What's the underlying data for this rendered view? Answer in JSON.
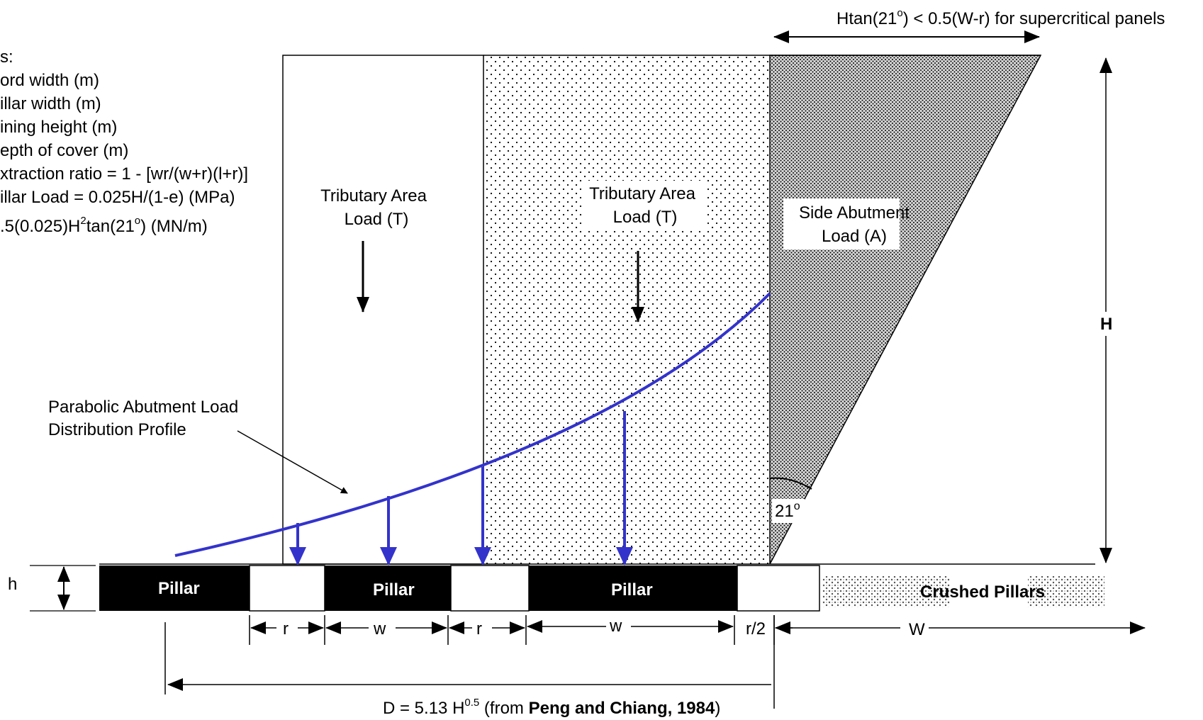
{
  "legend": {
    "heading": "s:",
    "lines": [
      "ord width (m)",
      "illar width (m)",
      "ining height (m)",
      "epth of cover (m)",
      "xtraction ratio = 1 - [wr/(w+r)(l+r)]",
      "illar Load = 0.025H/(1-e) (MPa)"
    ],
    "abutment_formula": {
      "a": ".5(0.025)H",
      "sup": "2",
      "b": "tan(21",
      "deg": "o",
      "c": ") (MN/m)"
    }
  },
  "top_note": {
    "a": "Htan(21",
    "deg": "o",
    "b": ") < 0.5(W-r) for supercritical panels"
  },
  "regions": {
    "tributary_left": [
      "Tributary Area",
      "Load (T)"
    ],
    "tributary_right": [
      "Tributary Area",
      "Load (T)"
    ],
    "side_abutment": [
      "Side Abutment",
      "Load (A)"
    ]
  },
  "angle": {
    "value": "21",
    "deg": "o"
  },
  "parabola_label": [
    "Parabolic Abutment Load",
    "Distribution Profile"
  ],
  "pillars": [
    "Pillar",
    "Pillar",
    "Pillar"
  ],
  "crushed_label": "Crushed Pillars",
  "dimensions": {
    "h": "h",
    "H": "H",
    "r1": "r",
    "w1": "w",
    "r2": "r",
    "w2": "w",
    "r_half": "r/2",
    "W": "W"
  },
  "bottom_formula": {
    "a": "D = 5.13 H",
    "sup": "0.5",
    "b": " (from ",
    "bold": "Peng and Chiang, 1984",
    "c": ")"
  },
  "colors": {
    "profile": "#3333cc",
    "ink": "#000000",
    "fill": "#ffffff"
  }
}
